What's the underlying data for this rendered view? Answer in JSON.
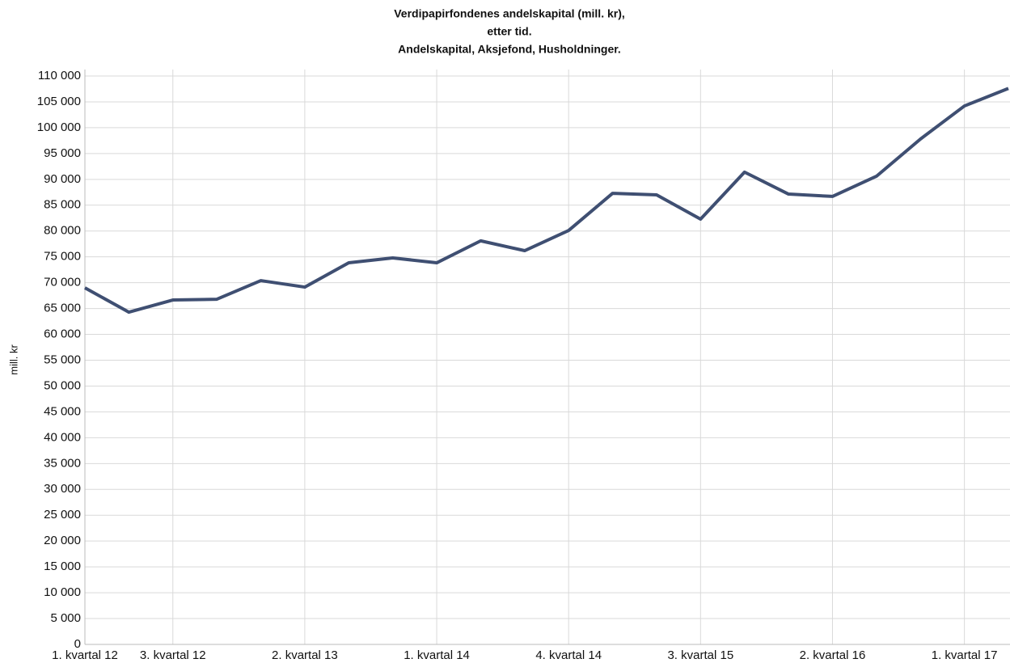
{
  "chart_data": {
    "type": "line",
    "title": [
      "Verdipapirfondenes andelskapital (mill. kr),",
      "etter tid.",
      "Andelskapital, Aksjefond, Husholdninger."
    ],
    "y_label": "mill. kr",
    "categories": [
      "1. kvartal 12",
      null,
      "3. kvartal 12",
      null,
      null,
      "2. kvartal 13",
      null,
      null,
      "1. kvartal 14",
      null,
      null,
      "4. kvartal 14",
      null,
      null,
      "3. kvartal 15",
      null,
      null,
      "2. kvartal 16",
      null,
      null,
      "1. kvartal 17",
      null
    ],
    "series": [
      {
        "name": "Andelskapital",
        "color": "#3f4f72",
        "values": [
          69000,
          64300,
          66650,
          66800,
          70400,
          69150,
          73850,
          74800,
          73850,
          78100,
          76200,
          80100,
          87300,
          87000,
          82300,
          91400,
          87150,
          86700,
          90600,
          97800,
          104200,
          107600
        ]
      }
    ],
    "ylim": [
      0,
      110000
    ],
    "yticks": [
      0,
      {
        "value": 5000,
        "label": "5 000"
      },
      {
        "value": 10000,
        "label": "10 000"
      },
      {
        "value": 15000,
        "label": "15 000"
      },
      {
        "value": 20000,
        "label": "20 000"
      },
      {
        "value": 25000,
        "label": "25 000"
      },
      {
        "value": 30000,
        "label": "30 000"
      },
      {
        "value": 35000,
        "label": "35 000"
      },
      {
        "value": 40000,
        "label": "40 000"
      },
      {
        "value": 45000,
        "label": "45 000"
      },
      {
        "value": 50000,
        "label": "50 000"
      },
      {
        "value": 55000,
        "label": "55 000"
      },
      {
        "value": 60000,
        "label": "60 000"
      },
      {
        "value": 65000,
        "label": "65 000"
      },
      {
        "value": 70000,
        "label": "70 000"
      },
      {
        "value": 75000,
        "label": "75 000"
      },
      {
        "value": 80000,
        "label": "80 000"
      },
      {
        "value": 85000,
        "label": "85 000"
      },
      {
        "value": 90000,
        "label": "90 000"
      },
      {
        "value": 95000,
        "label": "95 000"
      },
      {
        "value": 100000,
        "label": "100 000"
      },
      {
        "value": 105000,
        "label": "105 000"
      },
      {
        "value": 110000,
        "label": "110 000"
      }
    ],
    "grid": true
  }
}
